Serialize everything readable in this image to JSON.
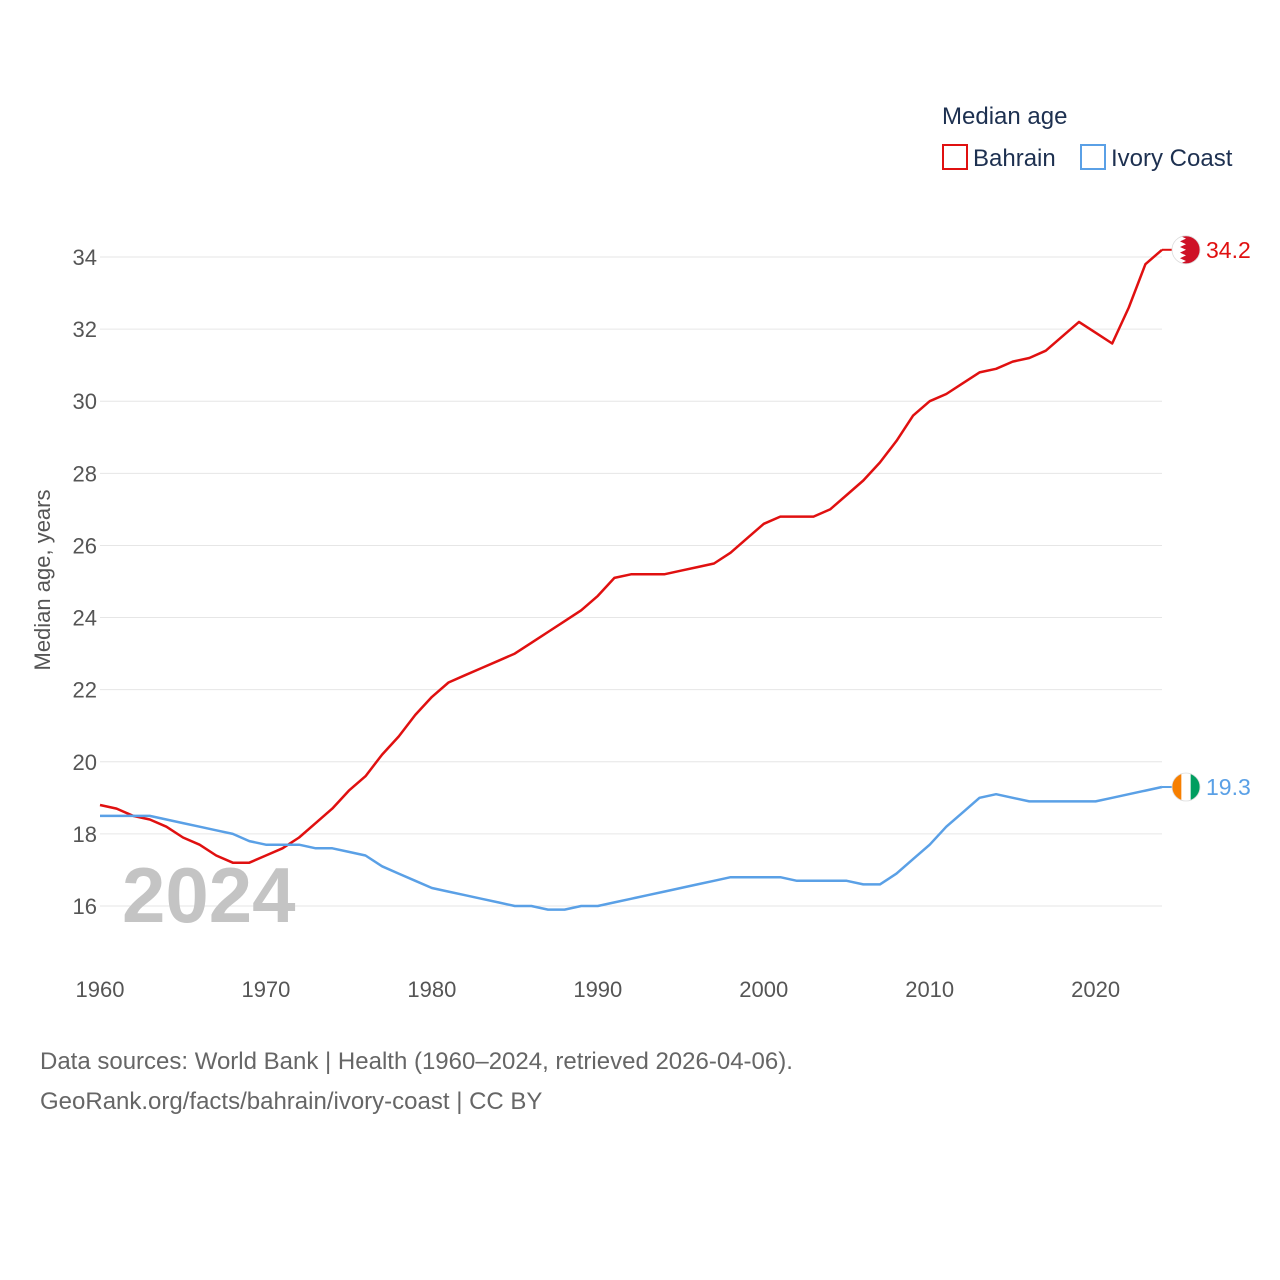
{
  "chart_data": {
    "type": "line",
    "title": "Median age",
    "ylabel": "Median age, years",
    "xlabel": "",
    "xlim": [
      1960,
      2024
    ],
    "ylim": [
      15,
      35
    ],
    "x_ticks": [
      1960,
      1970,
      1980,
      1990,
      2000,
      2010,
      2020
    ],
    "y_ticks": [
      16,
      18,
      20,
      22,
      24,
      26,
      28,
      30,
      32,
      34
    ],
    "grid": true,
    "legend_position": "top-right",
    "current_year_label": "2024",
    "x": [
      1960,
      1961,
      1962,
      1963,
      1964,
      1965,
      1966,
      1967,
      1968,
      1969,
      1970,
      1971,
      1972,
      1973,
      1974,
      1975,
      1976,
      1977,
      1978,
      1979,
      1980,
      1981,
      1982,
      1983,
      1984,
      1985,
      1986,
      1987,
      1988,
      1989,
      1990,
      1991,
      1992,
      1993,
      1994,
      1995,
      1996,
      1997,
      1998,
      1999,
      2000,
      2001,
      2002,
      2003,
      2004,
      2005,
      2006,
      2007,
      2008,
      2009,
      2010,
      2011,
      2012,
      2013,
      2014,
      2015,
      2016,
      2017,
      2018,
      2019,
      2020,
      2021,
      2022,
      2023,
      2024
    ],
    "series": [
      {
        "name": "Bahrain",
        "color": "#e01010",
        "end_label": "34.2",
        "values": [
          18.8,
          18.7,
          18.5,
          18.4,
          18.2,
          17.9,
          17.7,
          17.4,
          17.2,
          17.2,
          17.4,
          17.6,
          17.9,
          18.3,
          18.7,
          19.2,
          19.6,
          20.2,
          20.7,
          21.3,
          21.8,
          22.2,
          22.4,
          22.6,
          22.8,
          23.0,
          23.3,
          23.6,
          23.9,
          24.2,
          24.6,
          25.1,
          25.2,
          25.2,
          25.2,
          25.3,
          25.4,
          25.5,
          25.8,
          26.2,
          26.6,
          26.8,
          26.8,
          26.8,
          27.0,
          27.4,
          27.8,
          28.3,
          28.9,
          29.6,
          30.0,
          30.2,
          30.5,
          30.8,
          30.9,
          31.1,
          31.2,
          31.4,
          31.8,
          32.2,
          31.9,
          31.6,
          32.6,
          33.8,
          34.2
        ]
      },
      {
        "name": "Ivory Coast",
        "color": "#5aa0e6",
        "end_label": "19.3",
        "values": [
          18.5,
          18.5,
          18.5,
          18.5,
          18.4,
          18.3,
          18.2,
          18.1,
          18.0,
          17.8,
          17.7,
          17.7,
          17.7,
          17.6,
          17.6,
          17.5,
          17.4,
          17.1,
          16.9,
          16.7,
          16.5,
          16.4,
          16.3,
          16.2,
          16.1,
          16.0,
          16.0,
          15.9,
          15.9,
          16.0,
          16.0,
          16.1,
          16.2,
          16.3,
          16.4,
          16.5,
          16.6,
          16.7,
          16.8,
          16.8,
          16.8,
          16.8,
          16.7,
          16.7,
          16.7,
          16.7,
          16.6,
          16.6,
          16.9,
          17.3,
          17.7,
          18.2,
          18.6,
          19.0,
          19.1,
          19.0,
          18.9,
          18.9,
          18.9,
          18.9,
          18.9,
          19.0,
          19.1,
          19.2,
          19.3
        ]
      }
    ]
  },
  "legend": {
    "title": "Median age",
    "items": [
      {
        "label": "Bahrain",
        "color": "#e01010"
      },
      {
        "label": "Ivory Coast",
        "color": "#5aa0e6"
      }
    ]
  },
  "flags": {
    "bahrain": {
      "icon": "bahrain-flag-icon",
      "colors": [
        "#ffffff",
        "#ce1126"
      ]
    },
    "ivory_coast": {
      "icon": "ivory-coast-flag-icon",
      "colors": [
        "#f77f00",
        "#ffffff",
        "#009e60"
      ]
    }
  },
  "footer": {
    "line1": "Data sources: World Bank | Health (1960–2024, retrieved 2026-04-06).",
    "line2": "GeoRank.org/facts/bahrain/ivory-coast | CC BY"
  }
}
